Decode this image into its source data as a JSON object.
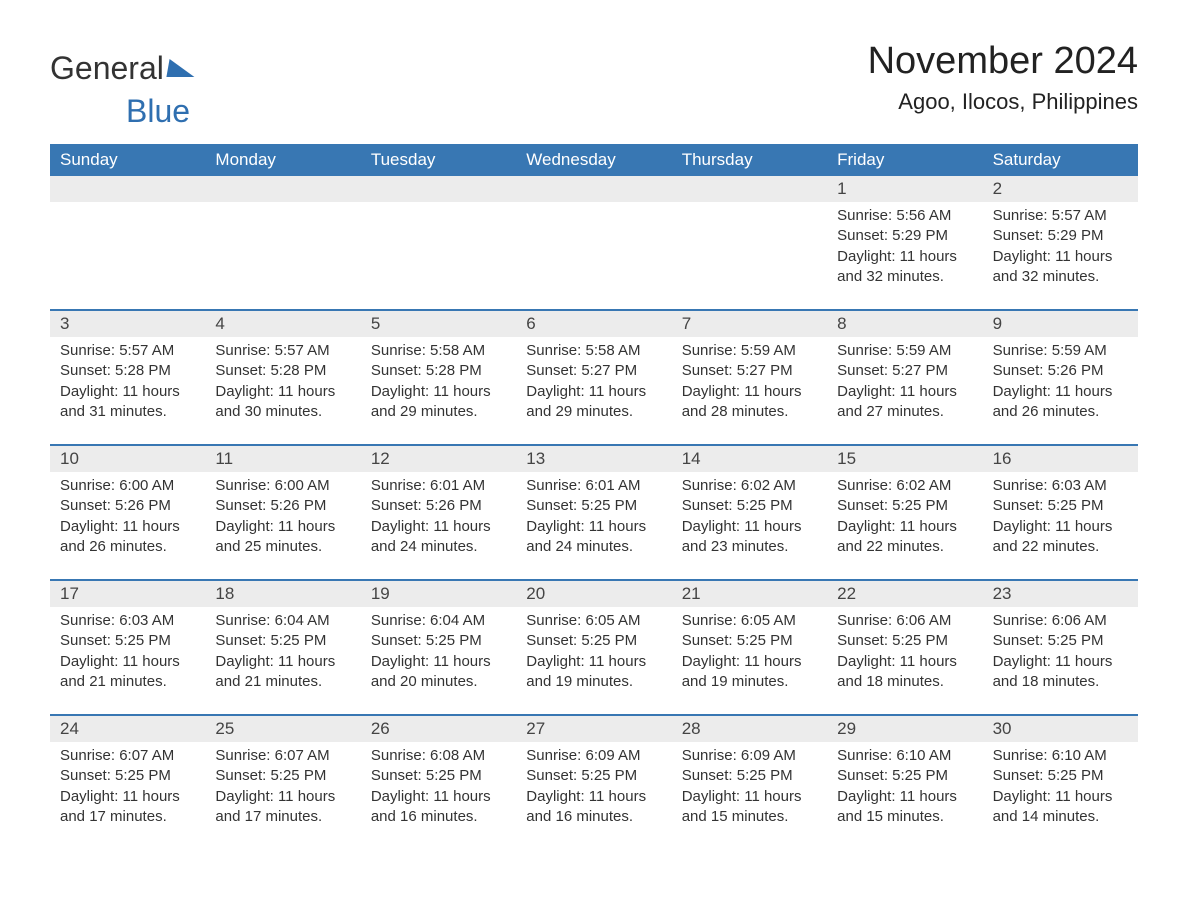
{
  "brand": {
    "part1": "General",
    "part2": "Blue"
  },
  "title": "November 2024",
  "location": "Agoo, Ilocos, Philippines",
  "colors": {
    "header_bg": "#3877b3",
    "header_text": "#ffffff",
    "band_bg": "#ececec",
    "rule": "#3877b3",
    "text": "#333333",
    "page_bg": "#ffffff"
  },
  "layout": {
    "columns": 7,
    "font_family": "Arial",
    "title_fontsize": 38,
    "location_fontsize": 22,
    "dow_fontsize": 17,
    "cell_fontsize": 15
  },
  "days_of_week": [
    "Sunday",
    "Monday",
    "Tuesday",
    "Wednesday",
    "Thursday",
    "Friday",
    "Saturday"
  ],
  "weeks": [
    [
      null,
      null,
      null,
      null,
      null,
      {
        "n": "1",
        "sunrise": "5:56 AM",
        "sunset": "5:29 PM",
        "daylight": "11 hours and 32 minutes."
      },
      {
        "n": "2",
        "sunrise": "5:57 AM",
        "sunset": "5:29 PM",
        "daylight": "11 hours and 32 minutes."
      }
    ],
    [
      {
        "n": "3",
        "sunrise": "5:57 AM",
        "sunset": "5:28 PM",
        "daylight": "11 hours and 31 minutes."
      },
      {
        "n": "4",
        "sunrise": "5:57 AM",
        "sunset": "5:28 PM",
        "daylight": "11 hours and 30 minutes."
      },
      {
        "n": "5",
        "sunrise": "5:58 AM",
        "sunset": "5:28 PM",
        "daylight": "11 hours and 29 minutes."
      },
      {
        "n": "6",
        "sunrise": "5:58 AM",
        "sunset": "5:27 PM",
        "daylight": "11 hours and 29 minutes."
      },
      {
        "n": "7",
        "sunrise": "5:59 AM",
        "sunset": "5:27 PM",
        "daylight": "11 hours and 28 minutes."
      },
      {
        "n": "8",
        "sunrise": "5:59 AM",
        "sunset": "5:27 PM",
        "daylight": "11 hours and 27 minutes."
      },
      {
        "n": "9",
        "sunrise": "5:59 AM",
        "sunset": "5:26 PM",
        "daylight": "11 hours and 26 minutes."
      }
    ],
    [
      {
        "n": "10",
        "sunrise": "6:00 AM",
        "sunset": "5:26 PM",
        "daylight": "11 hours and 26 minutes."
      },
      {
        "n": "11",
        "sunrise": "6:00 AM",
        "sunset": "5:26 PM",
        "daylight": "11 hours and 25 minutes."
      },
      {
        "n": "12",
        "sunrise": "6:01 AM",
        "sunset": "5:26 PM",
        "daylight": "11 hours and 24 minutes."
      },
      {
        "n": "13",
        "sunrise": "6:01 AM",
        "sunset": "5:25 PM",
        "daylight": "11 hours and 24 minutes."
      },
      {
        "n": "14",
        "sunrise": "6:02 AM",
        "sunset": "5:25 PM",
        "daylight": "11 hours and 23 minutes."
      },
      {
        "n": "15",
        "sunrise": "6:02 AM",
        "sunset": "5:25 PM",
        "daylight": "11 hours and 22 minutes."
      },
      {
        "n": "16",
        "sunrise": "6:03 AM",
        "sunset": "5:25 PM",
        "daylight": "11 hours and 22 minutes."
      }
    ],
    [
      {
        "n": "17",
        "sunrise": "6:03 AM",
        "sunset": "5:25 PM",
        "daylight": "11 hours and 21 minutes."
      },
      {
        "n": "18",
        "sunrise": "6:04 AM",
        "sunset": "5:25 PM",
        "daylight": "11 hours and 21 minutes."
      },
      {
        "n": "19",
        "sunrise": "6:04 AM",
        "sunset": "5:25 PM",
        "daylight": "11 hours and 20 minutes."
      },
      {
        "n": "20",
        "sunrise": "6:05 AM",
        "sunset": "5:25 PM",
        "daylight": "11 hours and 19 minutes."
      },
      {
        "n": "21",
        "sunrise": "6:05 AM",
        "sunset": "5:25 PM",
        "daylight": "11 hours and 19 minutes."
      },
      {
        "n": "22",
        "sunrise": "6:06 AM",
        "sunset": "5:25 PM",
        "daylight": "11 hours and 18 minutes."
      },
      {
        "n": "23",
        "sunrise": "6:06 AM",
        "sunset": "5:25 PM",
        "daylight": "11 hours and 18 minutes."
      }
    ],
    [
      {
        "n": "24",
        "sunrise": "6:07 AM",
        "sunset": "5:25 PM",
        "daylight": "11 hours and 17 minutes."
      },
      {
        "n": "25",
        "sunrise": "6:07 AM",
        "sunset": "5:25 PM",
        "daylight": "11 hours and 17 minutes."
      },
      {
        "n": "26",
        "sunrise": "6:08 AM",
        "sunset": "5:25 PM",
        "daylight": "11 hours and 16 minutes."
      },
      {
        "n": "27",
        "sunrise": "6:09 AM",
        "sunset": "5:25 PM",
        "daylight": "11 hours and 16 minutes."
      },
      {
        "n": "28",
        "sunrise": "6:09 AM",
        "sunset": "5:25 PM",
        "daylight": "11 hours and 15 minutes."
      },
      {
        "n": "29",
        "sunrise": "6:10 AM",
        "sunset": "5:25 PM",
        "daylight": "11 hours and 15 minutes."
      },
      {
        "n": "30",
        "sunrise": "6:10 AM",
        "sunset": "5:25 PM",
        "daylight": "11 hours and 14 minutes."
      }
    ]
  ],
  "labels": {
    "sunrise": "Sunrise: ",
    "sunset": "Sunset: ",
    "daylight": "Daylight: "
  }
}
